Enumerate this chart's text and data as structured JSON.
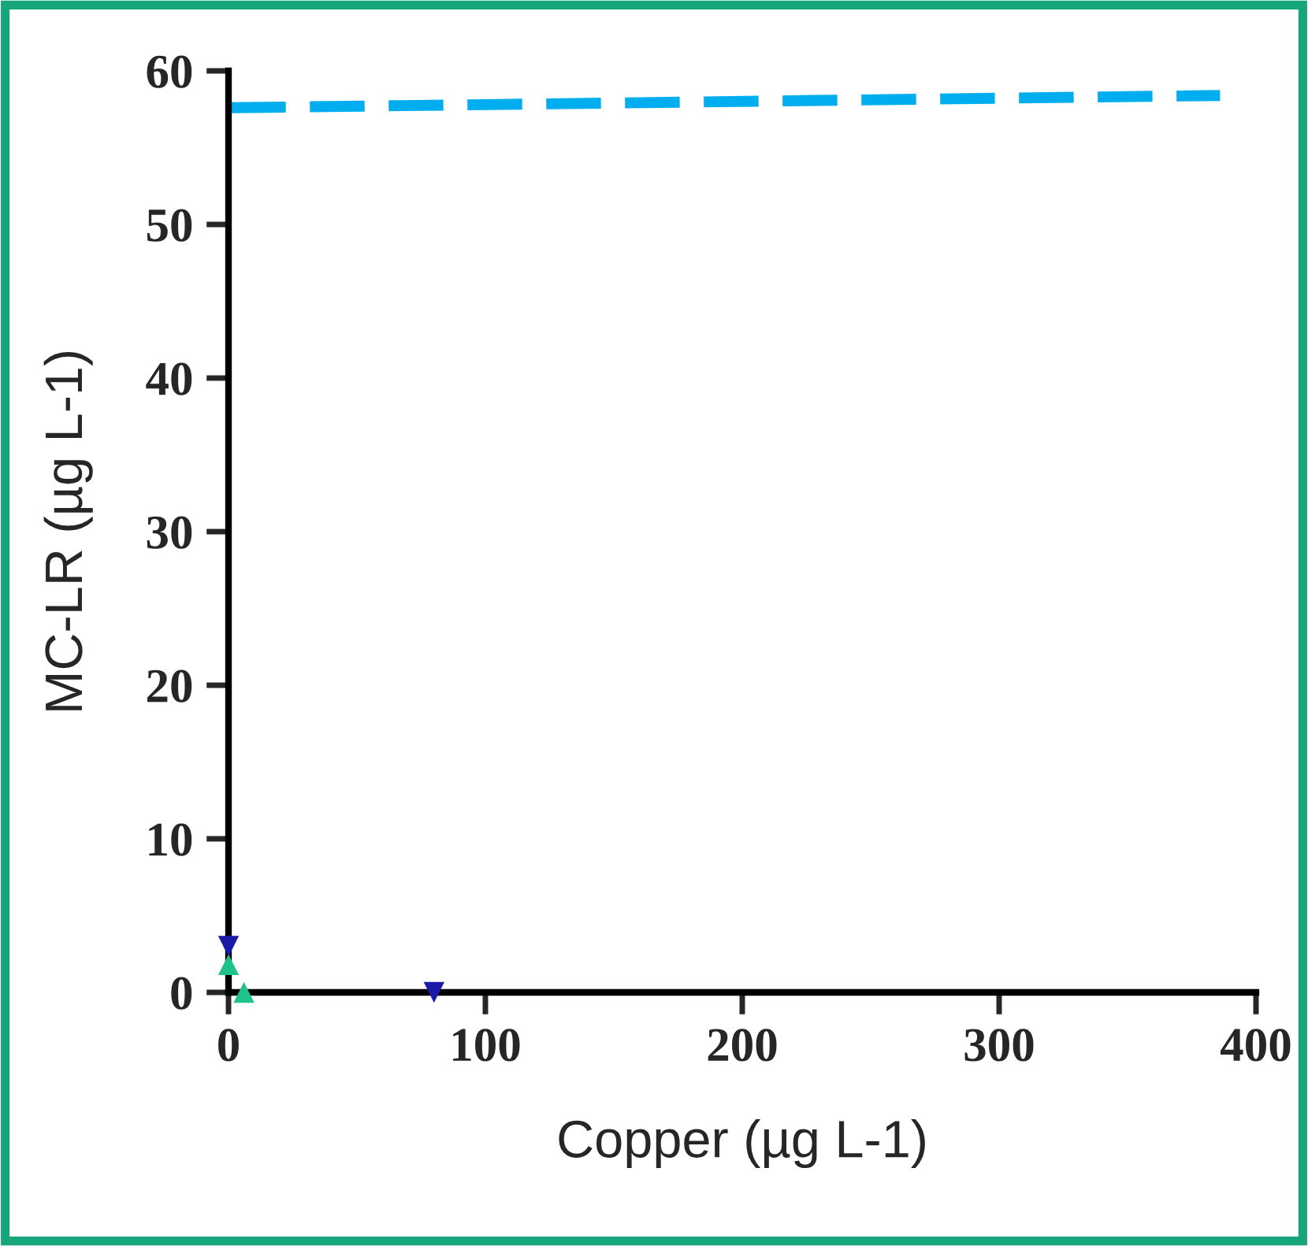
{
  "chart_data": {
    "type": "line",
    "xlabel": "Copper (µg L-1)",
    "ylabel": "MC-LR (µg L-1)",
    "xlim": [
      0,
      400
    ],
    "xticks": [
      0,
      100,
      200,
      300,
      400
    ],
    "ylim": [
      0,
      60
    ],
    "yticks": [
      0,
      10,
      20,
      30,
      40,
      50,
      60
    ],
    "grid": false,
    "series": [
      {
        "color": "#00aeef",
        "line_style": "dashed",
        "marker": "none",
        "x": [
          1,
          386
        ],
        "values": [
          57.6,
          58.4
        ]
      },
      {
        "type": "scatter",
        "color": "#1a1aa6",
        "marker": "triangle_down",
        "x": [
          0,
          80
        ],
        "values": [
          3,
          0
        ]
      },
      {
        "type": "scatter",
        "color": "#1fc28a",
        "marker": "triangle",
        "x": [
          0,
          6
        ],
        "values": [
          1.8,
          0
        ]
      }
    ]
  }
}
